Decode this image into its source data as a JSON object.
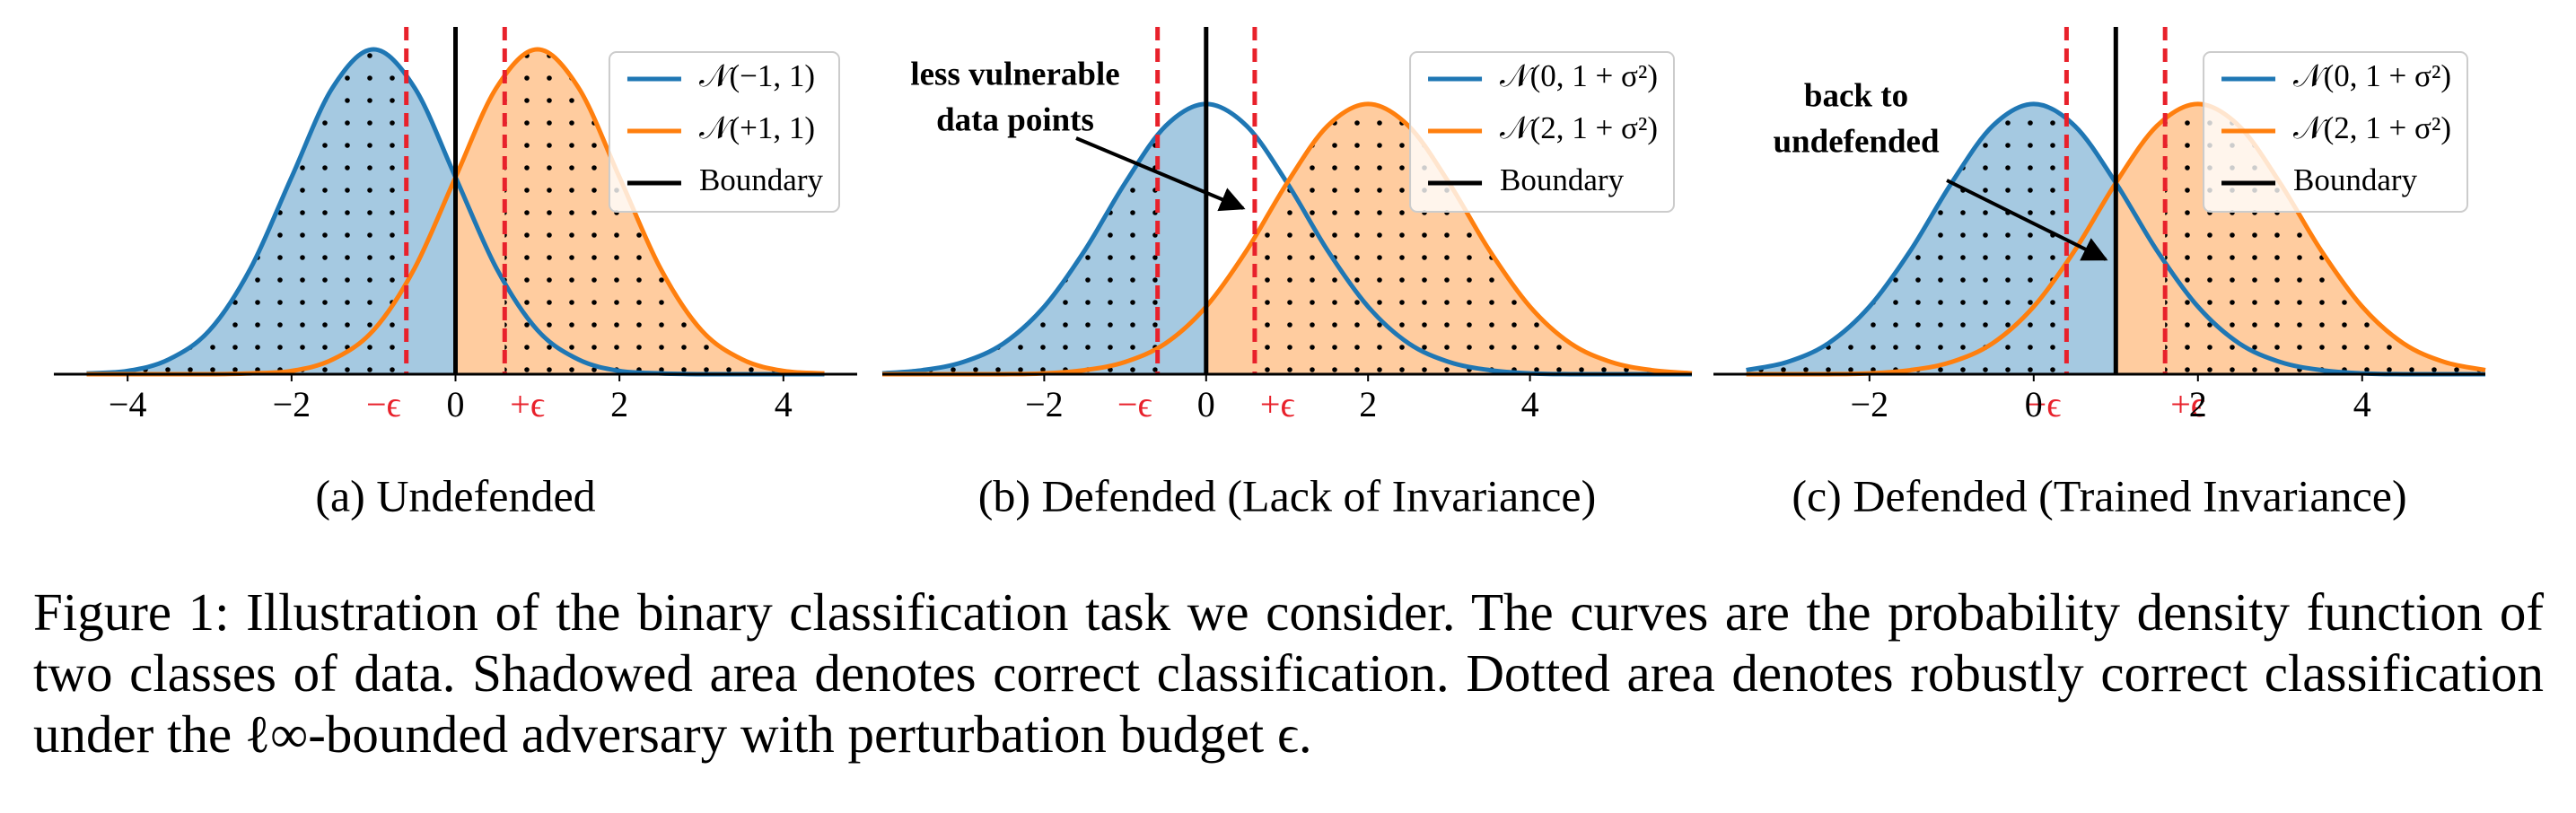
{
  "chart_data": [
    {
      "type": "line",
      "title": "(a) Undefended",
      "x": [
        -4.5,
        -4,
        -3.5,
        -3,
        -2.5,
        -2,
        -1.5,
        -1,
        -0.5,
        0,
        0.5,
        1,
        1.5,
        2,
        2.5,
        3,
        3.5,
        4,
        4.5
      ],
      "series": [
        {
          "name": "𝒩(−1, 1)",
          "color": "#1f77b4",
          "values": [
            0.001,
            0.004,
            0.018,
            0.054,
            0.13,
            0.242,
            0.352,
            0.399,
            0.352,
            0.242,
            0.13,
            0.054,
            0.018,
            0.004,
            0.001,
            0,
            0,
            0,
            0
          ]
        },
        {
          "name": "𝒩(+1, 1)",
          "color": "#ff7f0e",
          "values": [
            0,
            0,
            0,
            0,
            0.001,
            0.004,
            0.018,
            0.054,
            0.13,
            0.242,
            0.352,
            0.399,
            0.352,
            0.242,
            0.13,
            0.054,
            0.018,
            0.004,
            0.001
          ]
        }
      ],
      "boundary": {
        "name": "Boundary",
        "value": 0,
        "color": "#000000"
      },
      "epsilon": {
        "values": [
          -0.6,
          0.6
        ],
        "labels": [
          "−ϵ",
          "+ϵ"
        ],
        "color": "#e8212b"
      },
      "xlim": [
        -4.9,
        4.9
      ],
      "ylim": [
        0,
        0.42
      ],
      "xticks": [
        {
          "value": -4,
          "label": "−4"
        },
        {
          "value": -2,
          "label": "−2"
        },
        0,
        2,
        4
      ],
      "legend": "upper right"
    },
    {
      "type": "line",
      "title": "(b) Defended (Lack of Invariance)",
      "x": [
        -4,
        -3.5,
        -3,
        -2.5,
        -2,
        -1.5,
        -1,
        -0.5,
        0,
        0.5,
        1,
        1.5,
        2,
        2.5,
        3,
        3.5,
        4,
        4.5,
        5,
        5.5,
        6
      ],
      "series": [
        {
          "name": "𝒩(0, 1 + σ²)",
          "color": "#1f77b4",
          "values": [
            0.001,
            0.005,
            0.015,
            0.038,
            0.083,
            0.152,
            0.235,
            0.305,
            0.332,
            0.305,
            0.235,
            0.152,
            0.083,
            0.038,
            0.015,
            0.005,
            0.001,
            0,
            0,
            0,
            0
          ]
        },
        {
          "name": "𝒩(2, 1 + σ²)",
          "color": "#ff7f0e",
          "values": [
            0,
            0,
            0,
            0,
            0.001,
            0.005,
            0.015,
            0.038,
            0.083,
            0.152,
            0.235,
            0.305,
            0.332,
            0.305,
            0.235,
            0.152,
            0.083,
            0.038,
            0.015,
            0.005,
            0.001
          ]
        }
      ],
      "boundary": {
        "name": "Boundary",
        "value": 0,
        "color": "#000000"
      },
      "epsilon": {
        "values": [
          -0.6,
          0.6
        ],
        "labels": [
          "−ϵ",
          "+ϵ"
        ],
        "color": "#e8212b"
      },
      "xlim": [
        -4,
        6
      ],
      "ylim": [
        0,
        0.42
      ],
      "xticks": [
        {
          "value": -2,
          "label": "−2"
        },
        0,
        2,
        4
      ],
      "legend": "upper right",
      "annotations": [
        {
          "text": [
            "less vulnerable",
            "data points"
          ]
        }
      ]
    },
    {
      "type": "line",
      "title": "(c) Defended (Trained Invariance)",
      "x": [
        -3.5,
        -3,
        -2.5,
        -2,
        -1.5,
        -1,
        -0.5,
        0,
        0.5,
        1,
        1.5,
        2,
        2.5,
        3,
        3.5,
        4,
        4.5,
        5,
        5.5
      ],
      "series": [
        {
          "name": "𝒩(0, 1 + σ²)",
          "color": "#1f77b4",
          "values": [
            0.005,
            0.015,
            0.038,
            0.083,
            0.152,
            0.235,
            0.305,
            0.332,
            0.305,
            0.235,
            0.152,
            0.083,
            0.038,
            0.015,
            0.005,
            0.001,
            0,
            0,
            0
          ]
        },
        {
          "name": "𝒩(2, 1 + σ²)",
          "color": "#ff7f0e",
          "values": [
            0,
            0,
            0,
            0.001,
            0.005,
            0.015,
            0.038,
            0.083,
            0.152,
            0.235,
            0.305,
            0.332,
            0.305,
            0.235,
            0.152,
            0.083,
            0.038,
            0.015,
            0.005
          ]
        }
      ],
      "boundary": {
        "name": "Boundary",
        "value": 1,
        "color": "#000000"
      },
      "epsilon": {
        "values": [
          0.4,
          1.6
        ],
        "labels": [
          "−ϵ",
          "+ϵ"
        ],
        "color": "#e8212b"
      },
      "xlim": [
        -3.9,
        5.5
      ],
      "ylim": [
        0,
        0.42
      ],
      "xticks": [
        {
          "value": -2,
          "label": "−2"
        },
        0,
        2,
        4
      ],
      "legend": "upper right",
      "annotations": [
        {
          "text": [
            "back to",
            "undefended"
          ]
        }
      ]
    }
  ],
  "caption": "Figure 1: Illustration of the binary classification task we consider. The curves are the probability density function of two classes of data. Shadowed area denotes correct classification. Dotted area denotes robustly correct classification under the ℓ∞-bounded adversary with perturbation budget ϵ."
}
